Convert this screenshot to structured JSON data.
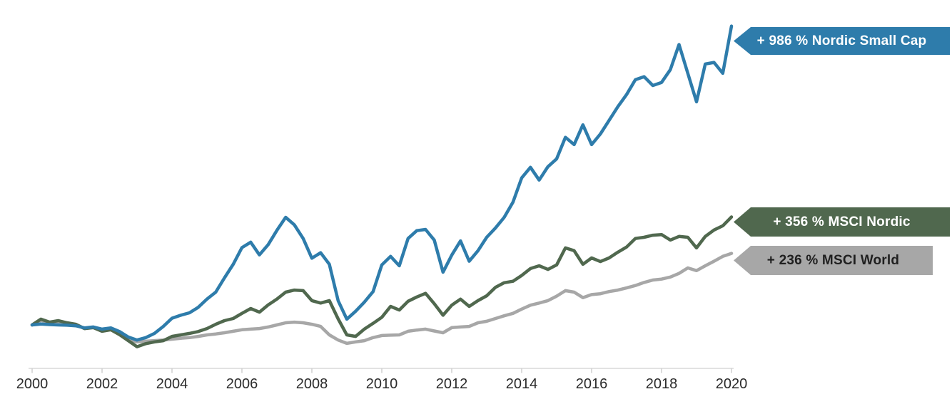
{
  "chart_data": {
    "type": "line",
    "title": "",
    "xlabel": "",
    "ylabel": "",
    "xlim": [
      2000,
      2020
    ],
    "ylim": [
      0,
      1125
    ],
    "grid": false,
    "legend_position": "right-flag-labels",
    "baseline_index": 100,
    "points_per_year": 4,
    "x_tick_labels": [
      "2000",
      "2002",
      "2004",
      "2006",
      "2008",
      "2010",
      "2012",
      "2014",
      "2016",
      "2018",
      "2020"
    ],
    "axis_color": "#d9d9d9",
    "tick_color": "#cfcfcf",
    "tick_label_color": "#2b2b2b",
    "background": "#ffffff",
    "series": [
      {
        "name": "Nordic Small Cap",
        "gain_pct": 986,
        "label": "+ 986 % Nordic Small Cap",
        "color": "#2e7cab",
        "label_text_color": "#ffffff",
        "values": [
          100,
          103,
          101,
          100,
          99,
          97,
          90,
          93,
          86,
          90,
          78,
          60,
          50,
          58,
          72,
          95,
          122,
          132,
          140,
          158,
          185,
          208,
          255,
          300,
          355,
          373,
          331,
          365,
          412,
          455,
          430,
          385,
          320,
          338,
          300,
          180,
          119,
          145,
          175,
          210,
          298,
          326,
          295,
          385,
          411,
          415,
          380,
          274,
          330,
          377,
          310,
          345,
          389,
          420,
          455,
          505,
          585,
          620,
          578,
          622,
          648,
          719,
          695,
          760,
          695,
          730,
          775,
          820,
          860,
          909,
          919,
          890,
          900,
          942,
          1025,
          930,
          836,
          961,
          966,
          930,
          1086
        ]
      },
      {
        "name": "MSCI Nordic",
        "gain_pct": 356,
        "label": "+ 356 % MSCI Nordic",
        "color": "#50684e",
        "label_text_color": "#ffffff",
        "values": [
          100,
          119,
          109,
          114,
          107,
          102,
          88,
          91,
          79,
          84,
          68,
          48,
          28,
          38,
          44,
          48,
          62,
          67,
          72,
          78,
          88,
          102,
          114,
          121,
          138,
          154,
          142,
          166,
          185,
          208,
          215,
          213,
          180,
          172,
          180,
          120,
          67,
          62,
          86,
          105,
          125,
          161,
          149,
          178,
          192,
          204,
          170,
          132,
          165,
          185,
          161,
          180,
          196,
          224,
          239,
          244,
          263,
          286,
          295,
          283,
          298,
          354,
          345,
          300,
          321,
          309,
          321,
          340,
          357,
          385,
          389,
          396,
          398,
          380,
          392,
          389,
          354,
          392,
          413,
          427,
          456
        ]
      },
      {
        "name": "MSCI World",
        "gain_pct": 236,
        "label": "+ 236 % MSCI World",
        "color": "#a7a7a7",
        "label_text_color": "#1f1f1f",
        "values": [
          100,
          115,
          107,
          110,
          104,
          100,
          88,
          92,
          81,
          85,
          70,
          52,
          44,
          46,
          48,
          50,
          53,
          56,
          58,
          62,
          67,
          70,
          74,
          79,
          84,
          86,
          88,
          93,
          100,
          107,
          109,
          107,
          102,
          95,
          67,
          50,
          39,
          44,
          48,
          58,
          65,
          66,
          67,
          79,
          83,
          86,
          80,
          74,
          91,
          93,
          95,
          107,
          112,
          121,
          130,
          138,
          152,
          165,
          172,
          180,
          195,
          213,
          208,
          190,
          200,
          203,
          210,
          215,
          222,
          230,
          240,
          248,
          251,
          258,
          270,
          288,
          279,
          295,
          310,
          326,
          336
        ]
      }
    ]
  }
}
